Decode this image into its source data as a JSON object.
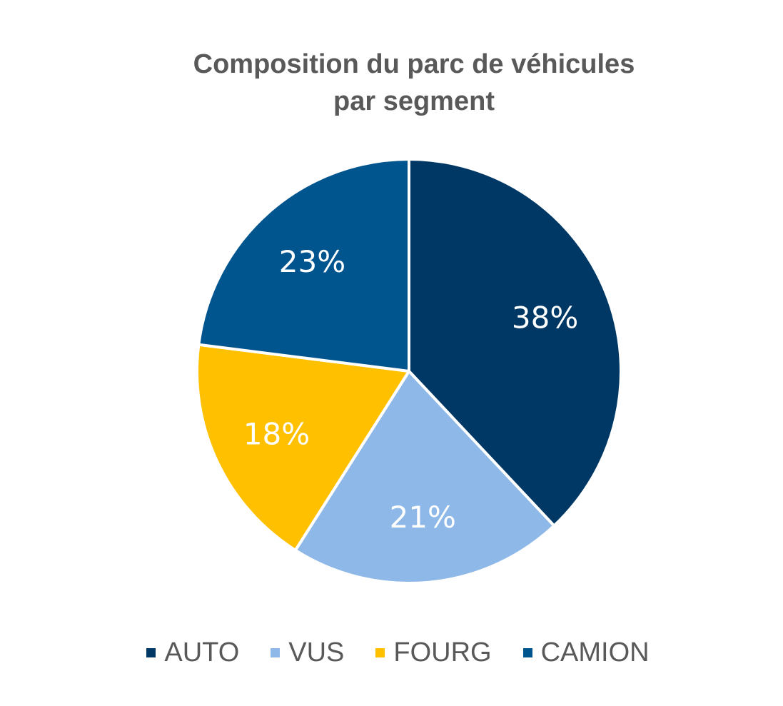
{
  "chart_data": {
    "type": "pie",
    "title_lines": [
      "Composition du parc de véhicules",
      "par segment"
    ],
    "categories": [
      "AUTO",
      "VUS",
      "FOURG",
      "CAMION"
    ],
    "values": [
      38,
      21,
      18,
      23
    ],
    "value_labels": [
      "38%",
      "21%",
      "18%",
      "23%"
    ],
    "colors": [
      "#003865",
      "#8DB8E8",
      "#FFC000",
      "#00558F"
    ],
    "legend_position": "bottom",
    "start_angle": "12 o'clock",
    "direction": "clockwise"
  }
}
